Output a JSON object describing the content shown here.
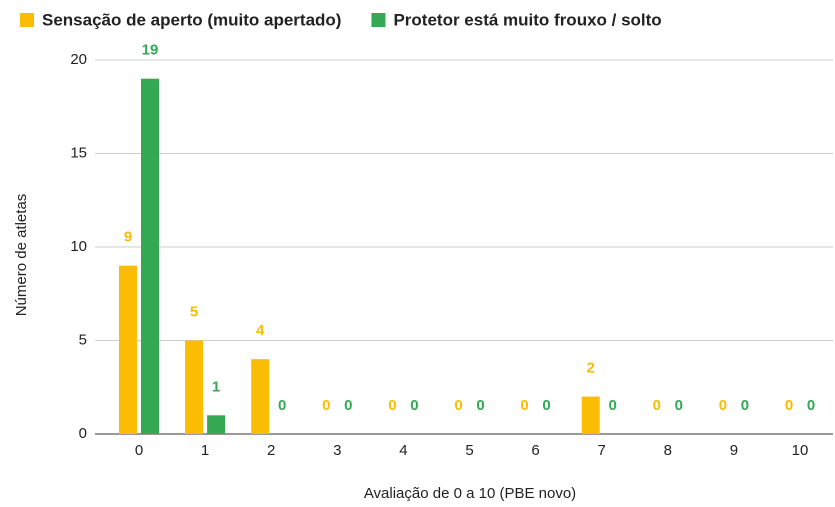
{
  "chart_data": {
    "type": "bar",
    "x_label": "Avaliação de 0 a 10 (PBE novo)",
    "y_label": "Número de atletas",
    "categories": [
      "0",
      "1",
      "2",
      "3",
      "4",
      "5",
      "6",
      "7",
      "8",
      "9",
      "10"
    ],
    "series": [
      {
        "name": "Sensação de aperto (muito apertado)",
        "color": "#fbbc04",
        "values": [
          9,
          5,
          4,
          0,
          0,
          0,
          0,
          2,
          0,
          0,
          0
        ]
      },
      {
        "name": "Protetor está muito frouxo / solto",
        "color": "#34a853",
        "values": [
          19,
          1,
          0,
          0,
          0,
          0,
          0,
          0,
          0,
          0,
          0
        ]
      }
    ],
    "ylim": [
      0,
      20
    ],
    "yticks": [
      0,
      5,
      10,
      15,
      20
    ],
    "grid": true,
    "legend": "top"
  }
}
